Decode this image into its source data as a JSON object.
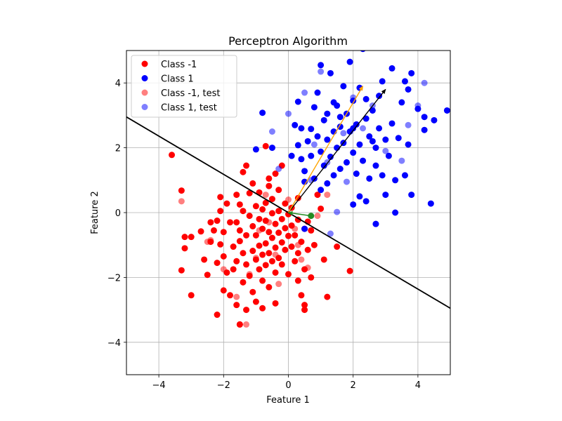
{
  "chart_data": {
    "type": "scatter",
    "title": "Perceptron Algorithm",
    "xlabel": "Feature 1",
    "ylabel": "Feature 2",
    "xlim": [
      -5,
      5
    ],
    "ylim": [
      -5,
      5
    ],
    "xticks": [
      -4,
      -2,
      0,
      2,
      4
    ],
    "yticks": [
      -4,
      -2,
      0,
      2,
      4
    ],
    "xtick_labels": [
      "−4",
      "−2",
      "0",
      "2",
      "4"
    ],
    "ytick_labels": [
      "−4",
      "−2",
      "0",
      "2",
      "4"
    ],
    "grid": true,
    "legend_position": "top-left",
    "series": [
      {
        "name": "Class -1",
        "color": "#ff0000",
        "alpha": 1.0,
        "points": [
          [
            -3.6,
            1.78
          ],
          [
            -3.3,
            0.68
          ],
          [
            -3.2,
            -0.75
          ],
          [
            -3.0,
            -0.75
          ],
          [
            -3.3,
            -1.78
          ],
          [
            -3.0,
            -2.55
          ],
          [
            -3.2,
            -1.1
          ],
          [
            -2.7,
            -0.58
          ],
          [
            -2.6,
            -1.45
          ],
          [
            -2.5,
            -1.92
          ],
          [
            -2.4,
            -0.9
          ],
          [
            -2.4,
            -0.3
          ],
          [
            -2.3,
            -0.55
          ],
          [
            -2.2,
            -0.25
          ],
          [
            -2.2,
            -1.55
          ],
          [
            -2.2,
            -3.15
          ],
          [
            -2.1,
            0.05
          ],
          [
            -2.1,
            0.48
          ],
          [
            -2.1,
            -0.98
          ],
          [
            -2.0,
            -1.35
          ],
          [
            -2.0,
            -2.4
          ],
          [
            -2.0,
            -0.6
          ],
          [
            -1.9,
            0.28
          ],
          [
            -1.9,
            -1.85
          ],
          [
            -1.8,
            -0.3
          ],
          [
            -1.8,
            -2.55
          ],
          [
            -1.7,
            -1.05
          ],
          [
            -1.7,
            -1.75
          ],
          [
            -1.6,
            0.55
          ],
          [
            -1.6,
            -0.3
          ],
          [
            -1.6,
            -1.5
          ],
          [
            -1.6,
            -2.85
          ],
          [
            -1.5,
            0.25
          ],
          [
            -1.5,
            -0.55
          ],
          [
            -1.5,
            -0.88
          ],
          [
            -1.5,
            -3.45
          ],
          [
            -1.4,
            1.25
          ],
          [
            -1.4,
            0.05
          ],
          [
            -1.4,
            -1.25
          ],
          [
            -1.4,
            -2.15
          ],
          [
            -1.3,
            1.45
          ],
          [
            -1.3,
            -0.7
          ],
          [
            -1.3,
            -1.6
          ],
          [
            -1.3,
            -3.0
          ],
          [
            -1.2,
            0.6
          ],
          [
            -1.2,
            -0.1
          ],
          [
            -1.2,
            -1.95
          ],
          [
            -1.1,
            0.9
          ],
          [
            -1.1,
            -0.42
          ],
          [
            -1.1,
            -1.18
          ],
          [
            -1.1,
            -2.45
          ],
          [
            -1.0,
            0.2
          ],
          [
            -1.0,
            -0.7
          ],
          [
            -1.0,
            -1.45
          ],
          [
            -1.0,
            -2.75
          ],
          [
            -0.9,
            0.62
          ],
          [
            -0.9,
            -0.2
          ],
          [
            -0.9,
            -1.02
          ],
          [
            -0.9,
            -1.75
          ],
          [
            -0.8,
            0.1
          ],
          [
            -0.8,
            -0.5
          ],
          [
            -0.8,
            -1.3
          ],
          [
            -0.8,
            -2.1
          ],
          [
            -0.8,
            -2.95
          ],
          [
            -0.7,
            2.05
          ],
          [
            -0.7,
            0.3
          ],
          [
            -0.7,
            -0.25
          ],
          [
            -0.7,
            -0.95
          ],
          [
            -0.7,
            -1.62
          ],
          [
            -0.6,
            0.82
          ],
          [
            -0.6,
            -0.6
          ],
          [
            -0.6,
            -1.25
          ],
          [
            -0.6,
            -2.3
          ],
          [
            -0.5,
            0.42
          ],
          [
            -0.5,
            -0.02
          ],
          [
            -0.5,
            -0.78
          ],
          [
            -0.5,
            -1.5
          ],
          [
            -0.4,
            1.2
          ],
          [
            -0.4,
            -0.35
          ],
          [
            -0.4,
            -1.08
          ],
          [
            -0.4,
            -1.85
          ],
          [
            -0.4,
            -2.8
          ],
          [
            -0.3,
            0.7
          ],
          [
            -0.3,
            0.05
          ],
          [
            -0.3,
            -0.62
          ],
          [
            -0.3,
            -1.4
          ],
          [
            -0.2,
            1.45
          ],
          [
            -0.2,
            -0.2
          ],
          [
            -0.2,
            -0.92
          ],
          [
            -0.2,
            -1.6
          ],
          [
            -0.1,
            0.28
          ],
          [
            -0.1,
            -0.48
          ],
          [
            -0.1,
            -1.15
          ],
          [
            0.0,
            -0.05
          ],
          [
            0.0,
            -0.72
          ],
          [
            0.0,
            -1.9
          ],
          [
            0.1,
            0.15
          ],
          [
            0.1,
            -0.4
          ],
          [
            0.1,
            -1.05
          ],
          [
            0.2,
            -0.7
          ],
          [
            0.2,
            -1.5
          ],
          [
            0.3,
            -0.22
          ],
          [
            0.3,
            -1.25
          ],
          [
            0.3,
            -2.1
          ],
          [
            0.4,
            -0.9
          ],
          [
            0.4,
            -2.55
          ],
          [
            0.5,
            -0.5
          ],
          [
            0.5,
            -1.75
          ],
          [
            0.5,
            -2.85
          ],
          [
            0.6,
            -0.28
          ],
          [
            0.6,
            -1.15
          ],
          [
            0.7,
            -0.55
          ],
          [
            0.7,
            -2.0
          ],
          [
            0.8,
            -1.0
          ],
          [
            0.9,
            0.55
          ],
          [
            1.0,
            0.12
          ],
          [
            1.1,
            -1.45
          ],
          [
            1.2,
            -2.6
          ],
          [
            1.5,
            -1.05
          ],
          [
            1.9,
            -1.8
          ],
          [
            -1.5,
            -3.45
          ],
          [
            0.5,
            -3.0
          ],
          [
            -0.6,
            1.05
          ],
          [
            0.3,
            0.45
          ]
        ]
      },
      {
        "name": "Class 1",
        "color": "#0000ff",
        "alpha": 1.0,
        "points": [
          [
            -1.0,
            1.95
          ],
          [
            -0.8,
            3.08
          ],
          [
            -0.5,
            2.0
          ],
          [
            0.1,
            1.75
          ],
          [
            0.2,
            2.7
          ],
          [
            0.3,
            3.42
          ],
          [
            0.3,
            2.08
          ],
          [
            0.4,
            1.65
          ],
          [
            0.4,
            2.6
          ],
          [
            0.5,
            1.28
          ],
          [
            0.5,
            0.95
          ],
          [
            0.5,
            -0.5
          ],
          [
            0.6,
            2.2
          ],
          [
            0.7,
            1.75
          ],
          [
            0.7,
            2.58
          ],
          [
            0.8,
            1.05
          ],
          [
            0.8,
            3.25
          ],
          [
            0.9,
            2.35
          ],
          [
            0.9,
            3.7
          ],
          [
            1.0,
            1.88
          ],
          [
            1.0,
            0.7
          ],
          [
            1.0,
            4.55
          ],
          [
            1.1,
            2.85
          ],
          [
            1.1,
            1.45
          ],
          [
            1.2,
            2.25
          ],
          [
            1.2,
            3.05
          ],
          [
            1.2,
            0.9
          ],
          [
            1.3,
            1.72
          ],
          [
            1.3,
            4.3
          ],
          [
            1.4,
            2.5
          ],
          [
            1.4,
            1.15
          ],
          [
            1.5,
            3.3
          ],
          [
            1.5,
            2.0
          ],
          [
            1.6,
            2.65
          ],
          [
            1.6,
            1.35
          ],
          [
            1.6,
            5.1
          ],
          [
            1.7,
            3.9
          ],
          [
            1.7,
            2.15
          ],
          [
            1.8,
            1.55
          ],
          [
            1.8,
            3.05
          ],
          [
            1.9,
            2.5
          ],
          [
            1.9,
            4.65
          ],
          [
            2.0,
            1.85
          ],
          [
            2.0,
            3.45
          ],
          [
            2.0,
            0.25
          ],
          [
            2.1,
            2.72
          ],
          [
            2.1,
            1.2
          ],
          [
            2.2,
            3.85
          ],
          [
            2.2,
            0.5
          ],
          [
            2.2,
            2.1
          ],
          [
            2.3,
            5.05
          ],
          [
            2.3,
            1.6
          ],
          [
            2.4,
            2.9
          ],
          [
            2.4,
            3.5
          ],
          [
            2.4,
            0.35
          ],
          [
            2.5,
            2.35
          ],
          [
            2.5,
            1.05
          ],
          [
            2.6,
            3.15
          ],
          [
            2.7,
            2.0
          ],
          [
            2.7,
            1.45
          ],
          [
            2.7,
            -0.35
          ],
          [
            2.8,
            3.6
          ],
          [
            2.8,
            2.6
          ],
          [
            2.9,
            1.15
          ],
          [
            2.9,
            4.05
          ],
          [
            3.0,
            2.25
          ],
          [
            3.0,
            0.55
          ],
          [
            3.1,
            1.75
          ],
          [
            3.2,
            4.45
          ],
          [
            3.2,
            2.75
          ],
          [
            3.3,
            1.0
          ],
          [
            3.3,
            0.0
          ],
          [
            3.4,
            2.3
          ],
          [
            3.5,
            3.4
          ],
          [
            3.6,
            4.05
          ],
          [
            3.6,
            1.15
          ],
          [
            3.7,
            3.8
          ],
          [
            3.7,
            2.1
          ],
          [
            3.8,
            4.3
          ],
          [
            3.8,
            0.55
          ],
          [
            4.0,
            3.2
          ],
          [
            4.2,
            2.95
          ],
          [
            4.2,
            2.55
          ],
          [
            4.4,
            0.28
          ],
          [
            4.5,
            2.85
          ],
          [
            4.9,
            3.15
          ],
          [
            1.6,
            2.95
          ],
          [
            2.0,
            2.6
          ],
          [
            2.6,
            2.2
          ],
          [
            1.4,
            3.4
          ]
        ]
      },
      {
        "name": "Class -1, test",
        "color": "#ff0000",
        "alpha": 0.5,
        "points": [
          [
            -3.3,
            0.35
          ],
          [
            -2.4,
            -0.85
          ],
          [
            -2.0,
            -1.75
          ],
          [
            -1.6,
            -2.6
          ],
          [
            -1.3,
            -3.45
          ],
          [
            -1.2,
            -1.9
          ],
          [
            -0.9,
            -0.55
          ],
          [
            -0.7,
            0.55
          ],
          [
            -0.6,
            -0.3
          ],
          [
            -0.4,
            -1.3
          ],
          [
            -0.3,
            -2.2
          ],
          [
            0.0,
            0.4
          ],
          [
            0.2,
            -0.5
          ],
          [
            0.4,
            -1.45
          ],
          [
            0.6,
            -1.7
          ],
          [
            0.9,
            -0.1
          ],
          [
            1.2,
            0.55
          ],
          [
            -2.5,
            -0.9
          ],
          [
            -1.0,
            -1.4
          ],
          [
            0.3,
            -1.0
          ]
        ]
      },
      {
        "name": "Class 1, test",
        "color": "#0000ff",
        "alpha": 0.5,
        "points": [
          [
            -0.3,
            1.35
          ],
          [
            -0.5,
            2.5
          ],
          [
            0.0,
            3.05
          ],
          [
            0.5,
            3.7
          ],
          [
            0.8,
            2.1
          ],
          [
            1.0,
            4.35
          ],
          [
            1.2,
            1.55
          ],
          [
            1.3,
            -0.65
          ],
          [
            1.5,
            0.02
          ],
          [
            1.8,
            0.95
          ],
          [
            2.0,
            3.55
          ],
          [
            2.3,
            2.6
          ],
          [
            2.6,
            3.3
          ],
          [
            2.7,
            -0.35
          ],
          [
            3.0,
            1.9
          ],
          [
            3.5,
            1.6
          ],
          [
            3.7,
            2.7
          ],
          [
            4.0,
            3.3
          ],
          [
            4.2,
            4.0
          ],
          [
            3.6,
            1.15
          ],
          [
            0.7,
            1.0
          ],
          [
            1.7,
            2.45
          ]
        ]
      }
    ],
    "misclassified_point": {
      "x": 0.7,
      "y": -0.1,
      "color": "#228b22"
    },
    "decision_boundary": {
      "x": [
        -5,
        5
      ],
      "y": [
        2.95,
        -2.95
      ],
      "color": "#000000"
    },
    "vectors": [
      {
        "name": "weight",
        "from": [
          0,
          0
        ],
        "to": [
          3.0,
          3.8
        ],
        "color": "#000000"
      },
      {
        "name": "updated-weight",
        "from": [
          0,
          0
        ],
        "to": [
          2.3,
          3.9
        ],
        "color": "#ffa500"
      },
      {
        "name": "update",
        "from": [
          0.7,
          -0.1
        ],
        "to": [
          0,
          0
        ],
        "color": "#228b22"
      }
    ]
  }
}
